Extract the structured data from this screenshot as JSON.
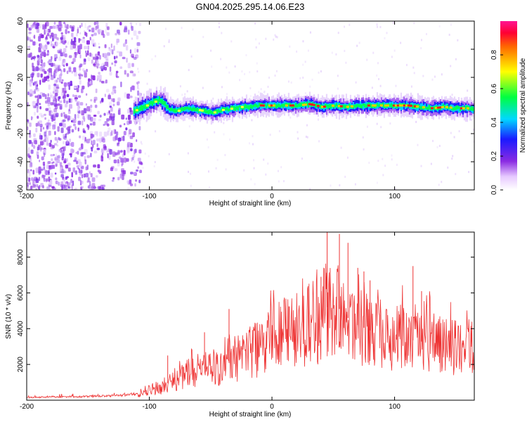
{
  "chart_data": [
    {
      "type": "heatmap",
      "title": "GN04.2025.295.14.06.E23",
      "xlabel": "Height of straight line (km)",
      "ylabel": "Frequency (Hz)",
      "xlim": [
        -200,
        165
      ],
      "ylim": [
        -60,
        60
      ],
      "x_ticks": [
        -200,
        -100,
        0,
        100
      ],
      "y_ticks": [
        -60,
        -40,
        -20,
        0,
        20,
        40,
        60
      ],
      "x_tick_labels": [
        "-200",
        "-100",
        "0",
        "100"
      ],
      "y_tick_labels": [
        "-60",
        "-40",
        "-20",
        "0",
        "20",
        "40",
        "60"
      ],
      "colorbar": {
        "label": "Normalized spectral amplitude",
        "range": [
          0,
          1
        ],
        "ticks": [
          0.0,
          0.2,
          0.4,
          0.6,
          0.8
        ],
        "tick_labels": [
          "0.0",
          "0.2",
          "0.4",
          "0.6",
          "0.8"
        ]
      },
      "signal_onset_km": -113,
      "center_track": {
        "x": [
          -113,
          -105,
          -98,
          -92,
          -88,
          -84,
          -78,
          -70,
          -62,
          -55,
          -48,
          -40,
          -32,
          -25,
          -18,
          -12,
          -6,
          0,
          10,
          20,
          30,
          40,
          50,
          60,
          70,
          80,
          90,
          100,
          110,
          120,
          130,
          140,
          150,
          160,
          165
        ],
        "y": [
          -4,
          -1,
          2,
          4,
          1,
          -3,
          -4,
          -2,
          -3,
          -4,
          -5,
          -3,
          -2,
          -1,
          -1,
          0,
          0,
          0,
          0,
          0,
          1,
          -1,
          0,
          -1,
          0,
          0,
          0,
          0,
          0,
          -1,
          -2,
          -1,
          -2,
          -2,
          -3
        ]
      },
      "peak_amplitude_km_range": [
        -10,
        160
      ]
    },
    {
      "type": "line",
      "xlabel": "Height of straight line (km)",
      "ylabel": "SNR (10 * v/v)",
      "xlim": [
        -200,
        165
      ],
      "ylim": [
        0,
        9400
      ],
      "x_ticks": [
        -200,
        -100,
        0,
        100
      ],
      "y_ticks": [
        2000,
        4000,
        6000,
        8000
      ],
      "x_tick_labels": [
        "-200",
        "-100",
        "0",
        "100"
      ],
      "y_tick_labels": [
        "2000",
        "4000",
        "6000",
        "8000"
      ],
      "series": [
        {
          "name": "SNR",
          "color": "#ee3333",
          "x": [
            -200,
            -180,
            -160,
            -140,
            -120,
            -110,
            -100,
            -90,
            -80,
            -70,
            -60,
            -50,
            -40,
            -30,
            -20,
            -10,
            0,
            10,
            20,
            30,
            40,
            45,
            50,
            55,
            60,
            70,
            80,
            90,
            100,
            110,
            120,
            130,
            140,
            150,
            165
          ],
          "values": [
            150,
            180,
            200,
            230,
            280,
            380,
            550,
            800,
            1100,
            1400,
            1700,
            1850,
            1950,
            2200,
            2500,
            2900,
            3400,
            3700,
            4000,
            4200,
            4500,
            5200,
            4900,
            5100,
            4700,
            4200,
            3900,
            3700,
            3500,
            3400,
            3300,
            3200,
            3100,
            3000,
            2900
          ],
          "spikes": [
            {
              "x": 45,
              "y": 9400
            },
            {
              "x": 55,
              "y": 9300
            },
            {
              "x": 62,
              "y": 8800
            },
            {
              "x": 40,
              "y": 6900
            },
            {
              "x": 70,
              "y": 7400
            },
            {
              "x": 75,
              "y": 7200
            },
            {
              "x": 80,
              "y": 6700
            },
            {
              "x": 115,
              "y": 7500
            },
            {
              "x": 122,
              "y": 6100
            },
            {
              "x": -35,
              "y": 5100
            },
            {
              "x": -55,
              "y": 3800
            },
            {
              "x": -85,
              "y": 2500
            }
          ]
        }
      ]
    }
  ]
}
